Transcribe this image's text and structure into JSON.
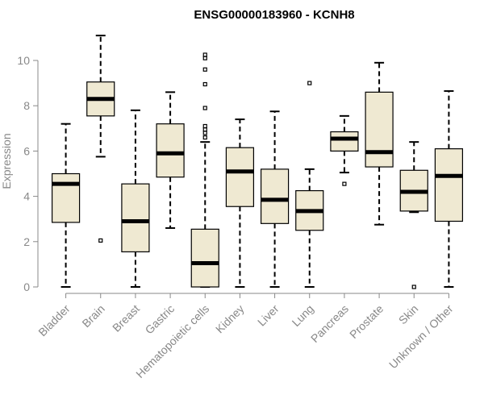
{
  "chart_data": {
    "type": "boxplot",
    "title": "ENSG00000183960 - KCNH8",
    "xlabel": "",
    "ylabel": "Expression",
    "ylim": [
      0,
      11.2
    ],
    "yticks": [
      0,
      2,
      4,
      6,
      8,
      10
    ],
    "colors": {
      "box_fill": "#EFE9D2",
      "stroke": "#000000",
      "axis": "#888888"
    },
    "categories": [
      "Bladder",
      "Brain",
      "Breast",
      "Gastric",
      "Hematopoietic cells",
      "Kidney",
      "Liver",
      "Lung",
      "Pancreas",
      "Prostate",
      "Skin",
      "Unknown / Other"
    ],
    "boxes": [
      {
        "name": "Bladder",
        "whisker_low": 0.0,
        "q1": 2.85,
        "median": 4.55,
        "q3": 5.0,
        "whisker_high": 7.2,
        "outliers": []
      },
      {
        "name": "Brain",
        "whisker_low": 5.75,
        "q1": 7.55,
        "median": 8.3,
        "q3": 9.05,
        "whisker_high": 11.1,
        "outliers": [
          2.05
        ]
      },
      {
        "name": "Breast",
        "whisker_low": 0.0,
        "q1": 1.55,
        "median": 2.9,
        "q3": 4.55,
        "whisker_high": 7.8,
        "outliers": []
      },
      {
        "name": "Gastric",
        "whisker_low": 2.6,
        "q1": 4.85,
        "median": 5.9,
        "q3": 7.2,
        "whisker_high": 8.6,
        "outliers": []
      },
      {
        "name": "Hematopoietic cells",
        "whisker_low": 0.0,
        "q1": 0.0,
        "median": 1.05,
        "q3": 2.55,
        "whisker_high": 6.4,
        "outliers": [
          6.6,
          6.8,
          6.95,
          7.1,
          7.9,
          8.95,
          9.6,
          10.1,
          10.25
        ]
      },
      {
        "name": "Kidney",
        "whisker_low": 0.0,
        "q1": 3.55,
        "median": 5.1,
        "q3": 6.15,
        "whisker_high": 7.4,
        "outliers": []
      },
      {
        "name": "Liver",
        "whisker_low": 0.0,
        "q1": 2.8,
        "median": 3.85,
        "q3": 5.2,
        "whisker_high": 7.75,
        "outliers": []
      },
      {
        "name": "Lung",
        "whisker_low": 0.0,
        "q1": 2.5,
        "median": 3.35,
        "q3": 4.25,
        "whisker_high": 5.2,
        "outliers": [
          9.0
        ]
      },
      {
        "name": "Pancreas",
        "whisker_low": 5.05,
        "q1": 6.0,
        "median": 6.55,
        "q3": 6.85,
        "whisker_high": 7.55,
        "outliers": [
          4.55
        ]
      },
      {
        "name": "Prostate",
        "whisker_low": 2.75,
        "q1": 5.3,
        "median": 5.95,
        "q3": 8.6,
        "whisker_high": 9.9,
        "outliers": []
      },
      {
        "name": "Skin",
        "whisker_low": 3.3,
        "q1": 3.35,
        "median": 4.2,
        "q3": 5.15,
        "whisker_high": 6.4,
        "outliers": [
          0.0
        ]
      },
      {
        "name": "Unknown / Other",
        "whisker_low": 0.0,
        "q1": 2.9,
        "median": 4.9,
        "q3": 6.1,
        "whisker_high": 8.65,
        "outliers": []
      }
    ]
  }
}
